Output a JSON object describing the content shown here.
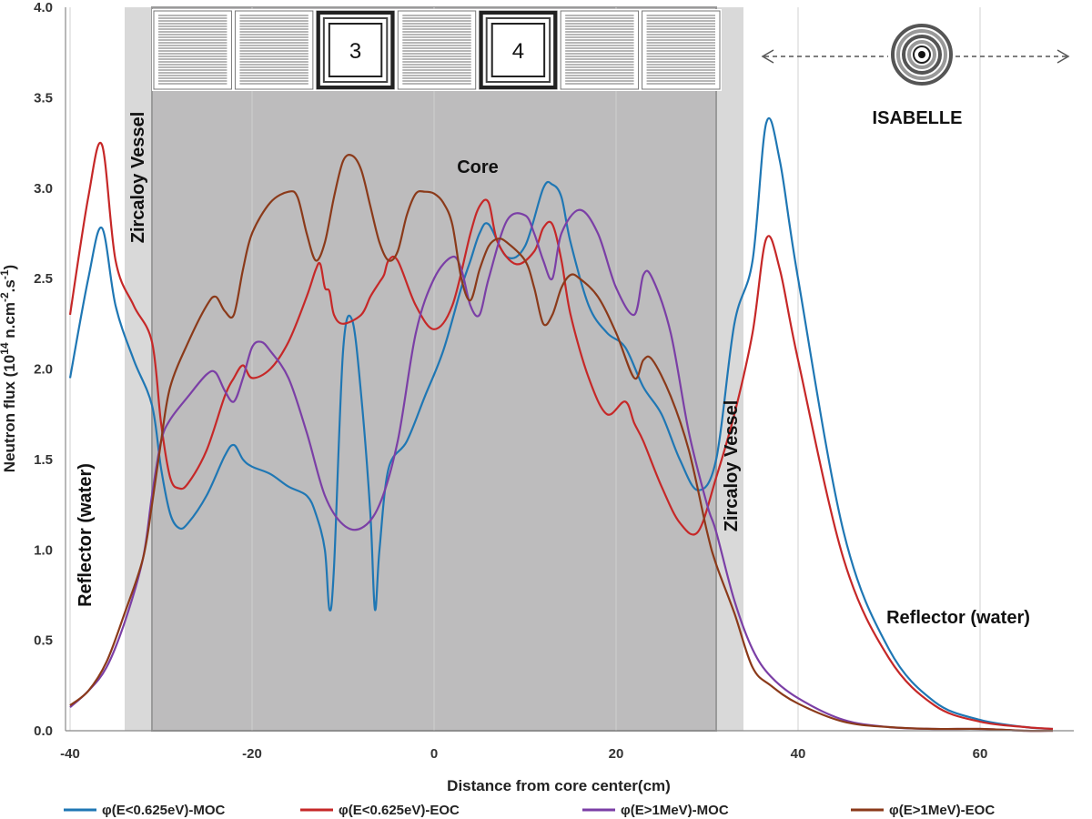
{
  "chart_data": {
    "type": "line",
    "title": "",
    "xlabel": "Distance from core center(cm)",
    "ylabel_parts": {
      "prefix": "Neutron flux (10",
      "exp1": "14",
      "mid": " n.cm",
      "exp2": "-2",
      "mid2": ".s",
      "exp3": "-1",
      "suffix": ")"
    },
    "xlim": [
      -40,
      70
    ],
    "ylim": [
      0,
      4
    ],
    "x_ticks": [
      -40,
      -20,
      0,
      20,
      40,
      60
    ],
    "y_ticks": [
      "0.0",
      "0.5",
      "1.0",
      "1.5",
      "2.0",
      "2.5",
      "3.0",
      "3.5",
      "4.0"
    ],
    "grid": "vertical",
    "legend_position": "bottom",
    "regions": {
      "core": [
        -31,
        31
      ],
      "vessel_left": [
        -34,
        -31
      ],
      "vessel_right": [
        31,
        34
      ]
    },
    "annotations": {
      "core": "Core",
      "vessel_left": "Zircaloy Vessel",
      "vessel_right": "Zircaloy Vessel",
      "reflector_left": "Reflector (water)",
      "reflector_right": "Reflector (water)",
      "isabelle": "ISABELLE",
      "element_3": "3",
      "element_4": "4"
    },
    "series": [
      {
        "name": "φ(E<0.625eV)-MOC",
        "color": "#1f77b4",
        "x": [
          -40,
          -38,
          -36.5,
          -35,
          -33,
          -31,
          -30,
          -29,
          -28,
          -27,
          -25,
          -23,
          -22,
          -21,
          -20,
          -18,
          -16,
          -14,
          -13,
          -12,
          -11.5,
          -11,
          -10,
          -9,
          -8,
          -7,
          -6.5,
          -6,
          -5,
          -3,
          -1,
          1,
          3,
          4,
          5,
          6,
          8,
          10,
          12,
          13,
          14,
          15,
          17,
          19,
          21,
          23,
          25,
          27,
          29,
          31,
          33,
          35,
          36.5,
          38,
          40,
          45,
          50,
          55,
          60,
          65,
          68
        ],
        "y": [
          1.95,
          2.5,
          2.78,
          2.35,
          2.05,
          1.8,
          1.45,
          1.2,
          1.12,
          1.15,
          1.3,
          1.52,
          1.58,
          1.5,
          1.46,
          1.42,
          1.35,
          1.3,
          1.2,
          1.0,
          0.67,
          0.9,
          2.1,
          2.27,
          1.85,
          1.2,
          0.67,
          1.0,
          1.45,
          1.6,
          1.85,
          2.1,
          2.45,
          2.6,
          2.75,
          2.8,
          2.62,
          2.68,
          3.0,
          3.02,
          2.95,
          2.7,
          2.35,
          2.2,
          2.12,
          1.9,
          1.75,
          1.5,
          1.33,
          1.5,
          2.25,
          2.6,
          3.36,
          3.15,
          2.5,
          1.1,
          0.45,
          0.16,
          0.06,
          0.02,
          0.01
        ]
      },
      {
        "name": "φ(E<0.625eV)-EOC",
        "color": "#c62828",
        "x": [
          -40,
          -38,
          -36.5,
          -35,
          -33,
          -31,
          -30,
          -29,
          -28,
          -27,
          -25,
          -23,
          -22,
          -21,
          -20,
          -18,
          -16,
          -14,
          -13,
          -12.5,
          -12,
          -11.5,
          -11,
          -10,
          -8,
          -7,
          -6,
          -5.5,
          -5,
          -4,
          -2,
          0,
          2,
          4,
          5,
          6,
          7,
          9,
          11,
          12,
          13,
          14,
          15,
          17,
          19,
          21,
          22,
          23,
          25,
          27,
          29,
          31,
          33,
          35,
          36.5,
          38,
          40,
          45,
          50,
          55,
          60,
          65,
          68
        ],
        "y": [
          2.3,
          2.95,
          3.24,
          2.6,
          2.35,
          2.15,
          1.7,
          1.4,
          1.34,
          1.37,
          1.55,
          1.85,
          1.95,
          2.02,
          1.95,
          2.0,
          2.15,
          2.4,
          2.55,
          2.58,
          2.45,
          2.43,
          2.3,
          2.25,
          2.3,
          2.4,
          2.48,
          2.52,
          2.6,
          2.6,
          2.35,
          2.22,
          2.35,
          2.75,
          2.9,
          2.92,
          2.7,
          2.58,
          2.65,
          2.78,
          2.8,
          2.6,
          2.3,
          1.95,
          1.75,
          1.82,
          1.7,
          1.6,
          1.35,
          1.15,
          1.1,
          1.4,
          1.75,
          2.2,
          2.72,
          2.55,
          2.05,
          0.95,
          0.4,
          0.14,
          0.05,
          0.02,
          0.01
        ]
      },
      {
        "name": "φ(E>1MeV)-MOC",
        "color": "#7b3fa6",
        "x": [
          -40,
          -38,
          -36,
          -34,
          -32,
          -31,
          -30,
          -29,
          -27,
          -25,
          -24,
          -23,
          -22,
          -21,
          -20,
          -19,
          -18,
          -16,
          -14,
          -12,
          -10,
          -8,
          -6,
          -4,
          -2,
          0,
          2,
          3,
          4,
          5,
          6,
          8,
          10,
          11,
          12,
          13,
          14,
          16,
          18,
          20,
          22,
          23,
          24,
          26,
          28,
          30,
          31,
          33,
          35,
          37,
          40,
          45,
          50,
          55,
          60,
          65,
          68
        ],
        "y": [
          0.13,
          0.22,
          0.35,
          0.6,
          0.95,
          1.3,
          1.6,
          1.72,
          1.85,
          1.97,
          1.98,
          1.88,
          1.82,
          1.95,
          2.12,
          2.15,
          2.1,
          1.95,
          1.65,
          1.3,
          1.14,
          1.12,
          1.25,
          1.6,
          2.2,
          2.5,
          2.62,
          2.55,
          2.35,
          2.3,
          2.5,
          2.82,
          2.85,
          2.75,
          2.6,
          2.5,
          2.75,
          2.88,
          2.75,
          2.45,
          2.3,
          2.52,
          2.5,
          2.2,
          1.65,
          1.25,
          1.1,
          0.72,
          0.45,
          0.3,
          0.18,
          0.06,
          0.02,
          0.01,
          0.01,
          0.0,
          0.0
        ]
      },
      {
        "name": "φ(E>1MeV)-EOC",
        "color": "#8b3a1a",
        "x": [
          -40,
          -38,
          -36,
          -34,
          -32,
          -31,
          -30,
          -29,
          -27,
          -25,
          -24,
          -23,
          -22,
          -21,
          -20,
          -18,
          -16,
          -15,
          -14,
          -13,
          -12,
          -11,
          -10,
          -9,
          -8,
          -7,
          -6,
          -5,
          -4,
          -3,
          -2,
          -1,
          0,
          1,
          2,
          3,
          4,
          5,
          6,
          7,
          8,
          10,
          11,
          12,
          13,
          14,
          15,
          16,
          18,
          20,
          22,
          23,
          24,
          26,
          28,
          30,
          31,
          33,
          35,
          37,
          40,
          45,
          50,
          55,
          60,
          65,
          68
        ],
        "y": [
          0.14,
          0.22,
          0.38,
          0.65,
          0.95,
          1.25,
          1.6,
          1.9,
          2.15,
          2.35,
          2.4,
          2.32,
          2.3,
          2.55,
          2.75,
          2.92,
          2.98,
          2.95,
          2.75,
          2.6,
          2.7,
          2.95,
          3.15,
          3.18,
          3.1,
          2.9,
          2.7,
          2.6,
          2.65,
          2.85,
          2.97,
          2.98,
          2.97,
          2.92,
          2.8,
          2.5,
          2.38,
          2.55,
          2.68,
          2.72,
          2.7,
          2.6,
          2.45,
          2.25,
          2.3,
          2.45,
          2.52,
          2.5,
          2.4,
          2.2,
          1.95,
          2.05,
          2.05,
          1.85,
          1.55,
          1.1,
          0.92,
          0.65,
          0.35,
          0.25,
          0.15,
          0.05,
          0.02,
          0.01,
          0.01,
          0.0,
          0.0
        ]
      }
    ]
  }
}
